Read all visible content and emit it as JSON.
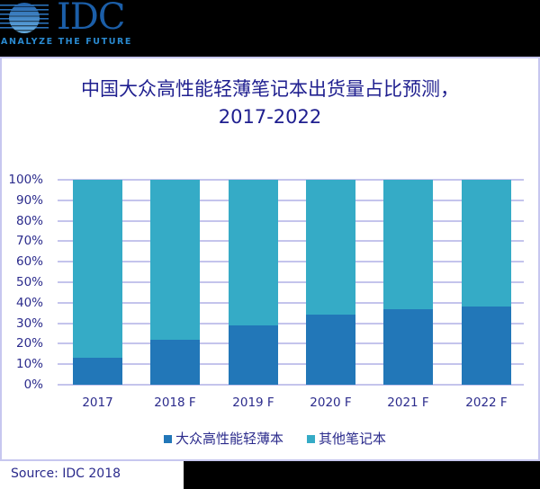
{
  "logo": {
    "name": "IDC",
    "tagline": "ANALYZE THE FUTURE",
    "colors": {
      "mark": "#2a7cc4",
      "text": "#1b5ea8",
      "tagline": "#2a8ad0"
    }
  },
  "chart": {
    "title_line1": "中国大众高性能轻薄笔记本出货量占比预测，",
    "title_line2": "2017-2022",
    "y_ticks": [
      "100%",
      "90%",
      "80%",
      "70%",
      "60%",
      "50%",
      "40%",
      "30%",
      "20%",
      "10%",
      "0%"
    ],
    "x_labels": [
      "2017",
      "2018 F",
      "2019 F",
      "2020 F",
      "2021 F",
      "2022 F"
    ],
    "legend": [
      {
        "label": "大众高性能轻薄本",
        "color": "#2277b8"
      },
      {
        "label": "其他笔记本",
        "color": "#35abc6"
      }
    ]
  },
  "source": "Source: IDC 2018",
  "chart_data": {
    "type": "bar",
    "stacked": true,
    "normalized_percent": true,
    "title": "中国大众高性能轻薄笔记本出货量占比预测，2017-2022",
    "categories": [
      "2017",
      "2018 F",
      "2019 F",
      "2020 F",
      "2021 F",
      "2022 F"
    ],
    "series": [
      {
        "name": "大众高性能轻薄本",
        "color": "#2277b8",
        "values": [
          13,
          22,
          29,
          34,
          37,
          38
        ]
      },
      {
        "name": "其他笔记本",
        "color": "#35abc6",
        "values": [
          87,
          78,
          71,
          66,
          63,
          62
        ]
      }
    ],
    "xlabel": "",
    "ylabel": "",
    "ylim": [
      0,
      100
    ],
    "y_tick_step": 10,
    "y_tick_format": "percent",
    "grid": true,
    "legend_position": "bottom",
    "source": "Source: IDC 2018"
  }
}
